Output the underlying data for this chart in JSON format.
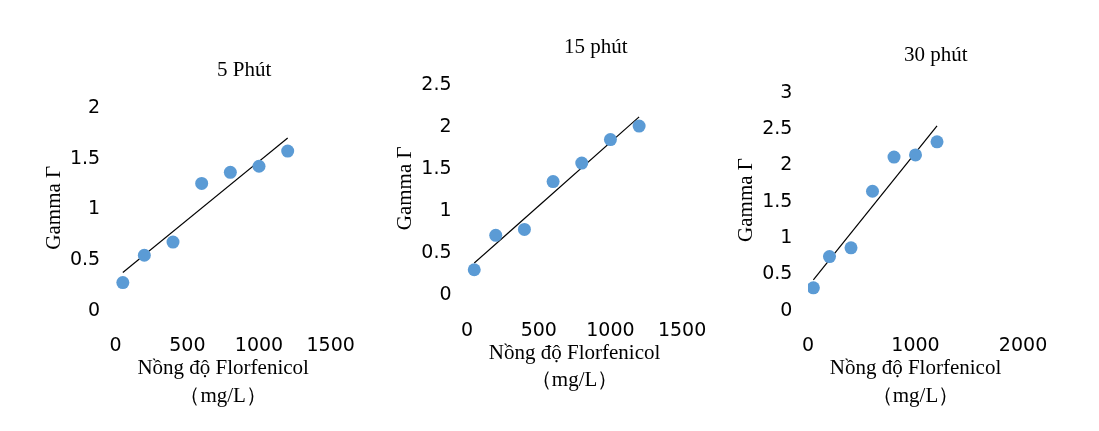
{
  "chart_data": [
    {
      "type": "scatter",
      "title": "5 Phút",
      "xlabel": "Nồng độ Florfenicol\n（mg/L）",
      "ylabel": "Gamma Γ",
      "xlim": [
        0,
        1500
      ],
      "xticks": [
        0,
        500,
        1000,
        1500
      ],
      "ylim": [
        0,
        2
      ],
      "yticks": [
        0,
        0.5,
        1,
        1.5,
        2
      ],
      "series": [
        {
          "type": "line",
          "color": "#000000",
          "x": [
            50,
            1200
          ],
          "values": [
            0.36,
            1.69
          ]
        },
        {
          "marker": "circle",
          "color": "#5b9bd5",
          "x": [
            50,
            200,
            400,
            600,
            800,
            1000,
            1200
          ],
          "values": [
            0.26,
            0.53,
            0.66,
            1.24,
            1.35,
            1.41,
            1.56
          ]
        }
      ]
    },
    {
      "type": "scatter",
      "title": "15 phút",
      "xlabel": "Nồng độ Florfenicol\n（mg/L）",
      "ylabel": "Gamma Γ",
      "xlim": [
        0,
        1500
      ],
      "xticks": [
        0,
        500,
        1000,
        1500
      ],
      "ylim": [
        0,
        2.5
      ],
      "yticks": [
        0,
        0.5,
        1,
        1.5,
        2,
        2.5
      ],
      "series": [
        {
          "type": "line",
          "color": "#000000",
          "x": [
            50,
            1200
          ],
          "values": [
            0.36,
            2.1
          ]
        },
        {
          "marker": "circle",
          "color": "#5b9bd5",
          "x": [
            50,
            200,
            400,
            600,
            800,
            1000,
            1200
          ],
          "values": [
            0.28,
            0.69,
            0.76,
            1.33,
            1.55,
            1.83,
            1.99
          ]
        }
      ]
    },
    {
      "type": "scatter",
      "title": "30 phút",
      "xlabel": "Nồng độ Florfenicol\n（mg/L）",
      "ylabel": "Gamma Γ",
      "xlim": [
        0,
        2000
      ],
      "xticks": [
        0,
        1000,
        2000
      ],
      "ylim": [
        0,
        3
      ],
      "yticks": [
        0,
        0.5,
        1,
        1.5,
        2,
        2.5,
        3
      ],
      "series": [
        {
          "type": "line",
          "color": "#000000",
          "x": [
            50,
            1200
          ],
          "values": [
            0.4,
            2.52
          ]
        },
        {
          "marker": "circle",
          "color": "#5b9bd5",
          "x": [
            50,
            200,
            400,
            600,
            800,
            1000,
            1200
          ],
          "values": [
            0.29,
            0.72,
            0.84,
            1.62,
            2.09,
            2.12,
            2.3
          ]
        }
      ]
    }
  ]
}
